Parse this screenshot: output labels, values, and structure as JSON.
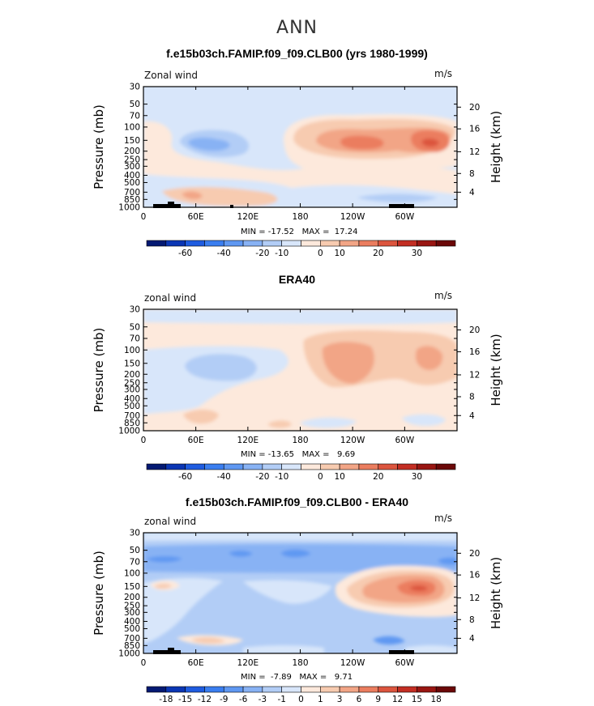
{
  "figure": {
    "title": "ANN"
  },
  "scale_a": {
    "colors": [
      "#041a73",
      "#0b36b4",
      "#1f5ce0",
      "#3a7ef0",
      "#5f98f2",
      "#88b2f4",
      "#b2cdf6",
      "#d8e6fa",
      "#fde9dc",
      "#f7cbb0",
      "#f2a586",
      "#eb7d5f",
      "#dc553e",
      "#c32e23",
      "#991612",
      "#6b0808"
    ],
    "labels": [
      "-60",
      "-40",
      "-20",
      "-10",
      "0",
      "10",
      "20",
      "30"
    ],
    "label_after_index": [
      1,
      3,
      5,
      6,
      8,
      9,
      11,
      13
    ]
  },
  "scale_b": {
    "colors": [
      "#041a73",
      "#0b36b4",
      "#1f5ce0",
      "#3a7ef0",
      "#5f98f2",
      "#88b2f4",
      "#b2cdf6",
      "#d8e6fa",
      "#fde9dc",
      "#f7cbb0",
      "#f2a586",
      "#eb7d5f",
      "#dc553e",
      "#c32e23",
      "#991612",
      "#6b0808"
    ],
    "labels": [
      "-18",
      "-15",
      "-12",
      "-9",
      "-6",
      "-3",
      "-1",
      "0",
      "1",
      "3",
      "6",
      "9",
      "12",
      "15",
      "18"
    ],
    "label_after_index": [
      0,
      1,
      2,
      3,
      4,
      5,
      6,
      7,
      8,
      9,
      10,
      11,
      12,
      13,
      14
    ]
  },
  "axes": {
    "pressure_ticks": [
      "30",
      "50",
      "70",
      "100",
      "150",
      "200",
      "250",
      "300",
      "400",
      "500",
      "700",
      "850",
      "1000"
    ],
    "height_ticks": [
      "20",
      "16",
      "12",
      "8",
      "4"
    ],
    "lon_ticks": [
      "0",
      "60E",
      "120E",
      "180",
      "120W",
      "60W"
    ],
    "ylabel_left": "Pressure (mb)",
    "ylabel_right": "Height (km)"
  },
  "panels": [
    {
      "title": "f.e15b03ch.FAMIP.f09_f09.CLB00 (yrs 1980-1999)",
      "var_label": "Zonal wind",
      "units": "m/s",
      "minmax": "MIN = -17.52   MAX =  17.24",
      "show_height_ticks_full": true
    },
    {
      "title": "ERA40",
      "var_label": "zonal wind",
      "units": "m/s",
      "minmax": "MIN = -13.65   MAX =   9.69"
    },
    {
      "title": "f.e15b03ch.FAMIP.f09_f09.CLB00 - ERA40",
      "var_label": "zonal wind",
      "units": "m/s",
      "minmax": "MIN =  -7.89   MAX =   9.71"
    }
  ],
  "chart_data": [
    {
      "type": "heatmap",
      "title": "f.e15b03ch.FAMIP.f09_f09.CLB00 (yrs 1980-1999)",
      "field": "Zonal wind",
      "units": "m/s",
      "xlabel": "",
      "ylabel": "Pressure (mb)",
      "y2label": "Height (km)",
      "x_ticks": [
        "0",
        "60E",
        "120E",
        "180",
        "120W",
        "60W"
      ],
      "y_ticks": [
        "30",
        "50",
        "70",
        "100",
        "150",
        "200",
        "250",
        "300",
        "400",
        "500",
        "700",
        "850",
        "1000"
      ],
      "min": -17.52,
      "max": 17.24,
      "contour_levels": [
        -60,
        -40,
        -20,
        -10,
        0,
        10,
        20,
        30
      ]
    },
    {
      "type": "heatmap",
      "title": "ERA40",
      "field": "zonal wind",
      "units": "m/s",
      "xlabel": "",
      "ylabel": "Pressure (mb)",
      "y2label": "Height (km)",
      "x_ticks": [
        "0",
        "60E",
        "120E",
        "180",
        "120W",
        "60W"
      ],
      "y_ticks": [
        "30",
        "50",
        "70",
        "100",
        "150",
        "200",
        "250",
        "300",
        "400",
        "500",
        "700",
        "850",
        "1000"
      ],
      "min": -13.65,
      "max": 9.69,
      "contour_levels": [
        -60,
        -40,
        -20,
        -10,
        0,
        10,
        20,
        30
      ]
    },
    {
      "type": "heatmap",
      "title": "f.e15b03ch.FAMIP.f09_f09.CLB00 - ERA40",
      "field": "zonal wind",
      "units": "m/s",
      "xlabel": "",
      "ylabel": "Pressure (mb)",
      "y2label": "Height (km)",
      "x_ticks": [
        "0",
        "60E",
        "120E",
        "180",
        "120W",
        "60W"
      ],
      "y_ticks": [
        "30",
        "50",
        "70",
        "100",
        "150",
        "200",
        "250",
        "300",
        "400",
        "500",
        "700",
        "850",
        "1000"
      ],
      "min": -7.89,
      "max": 9.71,
      "contour_levels": [
        -18,
        -15,
        -12,
        -9,
        -6,
        -3,
        -1,
        0,
        1,
        3,
        6,
        9,
        12,
        15,
        18
      ]
    }
  ]
}
